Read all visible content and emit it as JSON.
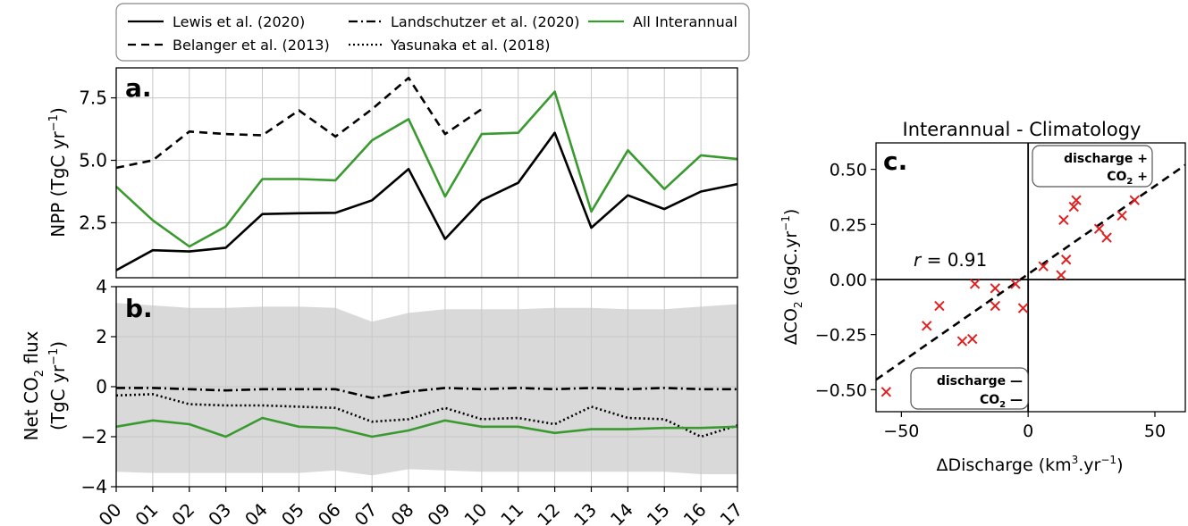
{
  "colors": {
    "lewis": "#000000",
    "belanger": "#000000",
    "landschutzer": "#000000",
    "yasunaka": "#000000",
    "all_interannual": "#3a9a30",
    "envelope": "#d9d9d9",
    "scatter_marker": "#e02020",
    "grid": "#c8c8c8"
  },
  "legend": {
    "items": [
      {
        "key": "lewis",
        "label": "Lewis et al. (2020)",
        "style": "solid"
      },
      {
        "key": "belanger",
        "label": "Belanger et al. (2013)",
        "style": "dashed"
      },
      {
        "key": "landschutzer",
        "label": "Landschutzer et al. (2020)",
        "style": "dashdot"
      },
      {
        "key": "yasunaka",
        "label": "Yasunaka et al. (2018)",
        "style": "dotted"
      },
      {
        "key": "all_interannual",
        "label": "All Interannual",
        "style": "solid-green"
      }
    ]
  },
  "chart_data": [
    {
      "id": "a",
      "panel_label": "a.",
      "type": "line",
      "ylabel": "NPP (TgC yr",
      "ylabel_sup": "−1",
      "ylabel_close": ")",
      "x": [
        "00",
        "01",
        "02",
        "03",
        "04",
        "05",
        "06",
        "07",
        "08",
        "09",
        "10",
        "11",
        "12",
        "13",
        "14",
        "15",
        "16",
        "17"
      ],
      "ylim": [
        0.3,
        8.7
      ],
      "yticks": [
        2.5,
        5.0,
        7.5
      ],
      "ytick_labels": [
        "2.5",
        "5.0",
        "7.5"
      ],
      "grid": true,
      "series": [
        {
          "key": "lewis",
          "name": "Lewis et al. (2020)",
          "values": [
            0.6,
            1.4,
            1.35,
            1.5,
            2.85,
            2.88,
            2.9,
            3.4,
            4.65,
            1.85,
            3.4,
            4.1,
            6.1,
            2.3,
            3.6,
            3.05,
            3.75,
            4.05
          ]
        },
        {
          "key": "belanger",
          "name": "Belanger et al. (2013)",
          "values": [
            4.7,
            5.0,
            6.15,
            6.05,
            6.0,
            7.0,
            5.95,
            7.05,
            8.3,
            6.05,
            7.05,
            null,
            null,
            null,
            null,
            null,
            null,
            null
          ]
        },
        {
          "key": "all_interannual",
          "name": "All Interannual",
          "values": [
            3.95,
            2.6,
            1.55,
            2.35,
            4.25,
            4.25,
            4.2,
            5.8,
            6.65,
            3.55,
            6.05,
            6.1,
            7.75,
            2.95,
            5.4,
            3.85,
            5.2,
            5.05
          ]
        }
      ]
    },
    {
      "id": "b",
      "panel_label": "b.",
      "type": "line",
      "ylabel_line1": "Net CO",
      "ylabel_line1_sub": "2",
      "ylabel_line1_end": " flux",
      "ylabel_line2": "(TgC yr",
      "ylabel_line2_sup": "−1",
      "ylabel_line2_end": ")",
      "x": [
        "00",
        "01",
        "02",
        "03",
        "04",
        "05",
        "06",
        "07",
        "08",
        "09",
        "10",
        "11",
        "12",
        "13",
        "14",
        "15",
        "16",
        "17"
      ],
      "ylim": [
        -4,
        4
      ],
      "yticks": [
        -4,
        -2,
        0,
        2,
        4
      ],
      "ytick_labels": [
        "−4",
        "−2",
        "0",
        "2",
        "4"
      ],
      "xtick_labels": [
        "00",
        "01",
        "02",
        "03",
        "04",
        "05",
        "06",
        "07",
        "08",
        "09",
        "10",
        "11",
        "12",
        "13",
        "14",
        "15",
        "16",
        "17"
      ],
      "grid": true,
      "envelope": {
        "upper": [
          3.35,
          3.25,
          3.15,
          3.15,
          3.2,
          3.2,
          3.15,
          2.6,
          2.95,
          3.1,
          3.1,
          3.1,
          3.15,
          3.15,
          3.1,
          3.1,
          3.2,
          3.3
        ],
        "lower": [
          -3.4,
          -3.45,
          -3.45,
          -3.45,
          -3.45,
          -3.45,
          -3.35,
          -3.55,
          -3.3,
          -3.35,
          -3.4,
          -3.4,
          -3.4,
          -3.4,
          -3.4,
          -3.4,
          -3.5,
          -3.5
        ]
      },
      "series": [
        {
          "key": "landschutzer",
          "name": "Landschutzer et al. (2020)",
          "values": [
            -0.05,
            -0.05,
            -0.1,
            -0.15,
            -0.1,
            -0.1,
            -0.1,
            -0.45,
            -0.2,
            -0.05,
            -0.1,
            -0.05,
            -0.1,
            -0.05,
            -0.1,
            -0.05,
            -0.1,
            -0.1
          ]
        },
        {
          "key": "yasunaka",
          "name": "Yasunaka et al. (2018)",
          "values": [
            -0.35,
            -0.3,
            -0.7,
            -0.75,
            -0.75,
            -0.8,
            -0.85,
            -1.4,
            -1.3,
            -0.85,
            -1.3,
            -1.25,
            -1.5,
            -0.8,
            -1.25,
            -1.3,
            -2.0,
            -1.55
          ]
        },
        {
          "key": "all_interannual",
          "name": "All Interannual",
          "values": [
            -1.6,
            -1.35,
            -1.5,
            -2.0,
            -1.25,
            -1.6,
            -1.65,
            -2.0,
            -1.75,
            -1.35,
            -1.6,
            -1.6,
            -1.85,
            -1.7,
            -1.7,
            -1.65,
            -1.65,
            -1.6
          ]
        }
      ]
    },
    {
      "id": "c",
      "panel_label": "c.",
      "type": "scatter",
      "title": "Interannual - Climatology",
      "xlabel": "ΔDischarge (km",
      "xlabel_sup": "3",
      "xlabel_end": ".yr",
      "xlabel_sup2": "−1",
      "xlabel_close": ")",
      "ylabel": "ΔCO",
      "ylabel_sub": "2",
      "ylabel_mid": " (GgC.yr",
      "ylabel_sup": "−1",
      "ylabel_close": ")",
      "xlim": [
        -60,
        62
      ],
      "ylim": [
        -0.6,
        0.62
      ],
      "xticks": [
        -50,
        0,
        50
      ],
      "xtick_labels": [
        "−50",
        "0",
        "50"
      ],
      "yticks": [
        -0.5,
        -0.25,
        0.0,
        0.25,
        0.5
      ],
      "ytick_labels": [
        "−0.50",
        "−0.25",
        "0.00",
        "0.25",
        "0.50"
      ],
      "grid": false,
      "r_label": "r",
      "r_value": " = 0.91",
      "fit_line": {
        "x": [
          -60,
          62
        ],
        "y": [
          -0.455,
          0.52
        ]
      },
      "annotation_top_line1": "discharge +",
      "annotation_top_line2a": "CO",
      "annotation_top_line2_sub": "2",
      "annotation_top_line2b": " +",
      "annotation_bottom_line1": "discharge —",
      "annotation_bottom_line2a": "CO",
      "annotation_bottom_line2_sub": "2",
      "annotation_bottom_line2b": " —",
      "points": [
        {
          "x": -56,
          "y": -0.51
        },
        {
          "x": -40,
          "y": -0.21
        },
        {
          "x": -35,
          "y": -0.12
        },
        {
          "x": -26,
          "y": -0.28
        },
        {
          "x": -22,
          "y": -0.27
        },
        {
          "x": -21,
          "y": -0.02
        },
        {
          "x": -13,
          "y": -0.04
        },
        {
          "x": -13,
          "y": -0.12
        },
        {
          "x": -5,
          "y": -0.02
        },
        {
          "x": -2,
          "y": -0.13
        },
        {
          "x": 6,
          "y": 0.06
        },
        {
          "x": 13,
          "y": 0.02
        },
        {
          "x": 14,
          "y": 0.27
        },
        {
          "x": 15,
          "y": 0.09
        },
        {
          "x": 18,
          "y": 0.33
        },
        {
          "x": 19,
          "y": 0.36
        },
        {
          "x": 28,
          "y": 0.23
        },
        {
          "x": 31,
          "y": 0.19
        },
        {
          "x": 37,
          "y": 0.29
        },
        {
          "x": 42,
          "y": 0.36
        }
      ]
    }
  ]
}
